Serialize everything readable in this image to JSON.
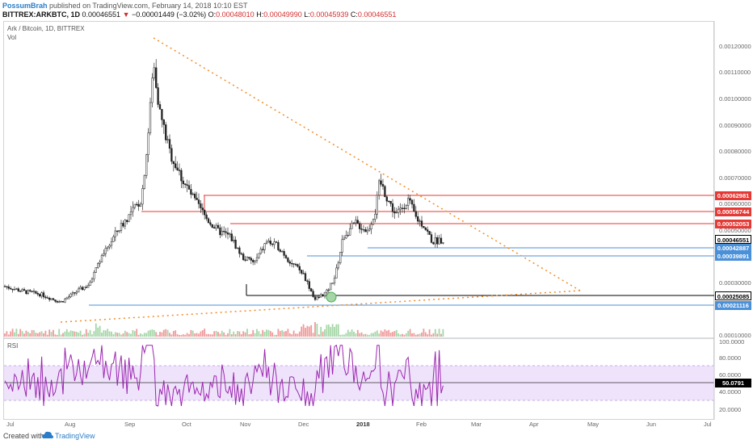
{
  "header": {
    "author": "PossumBrah",
    "published_text": " published on TradingView.com, February 14, 2018 10:10 EST",
    "symbol": "BITTREX:ARKBTC, 1D",
    "last": "0.00046551",
    "change_arrow": "▼",
    "change": "−0.00001449 (−3.02%)",
    "open_label": "O:",
    "open": "0.00048010",
    "high_label": "H:",
    "high": "0.00049990",
    "low_label": "L:",
    "low": "0.00045939",
    "close_label": "C:",
    "close": "0.00046551"
  },
  "chart": {
    "title": "Ark / Bitcoin, 1D, BITTREX",
    "volume_label": "Vol",
    "rsi_label": "RSI"
  },
  "price_axis": {
    "ticks": [
      "0.00120000",
      "0.00110000",
      "0.00100000",
      "0.00090000",
      "0.00080000",
      "0.00070000",
      "0.00060000",
      "0.00050000",
      "0.00030000",
      "0.00010000"
    ],
    "tags": [
      {
        "label": "0.00062981",
        "color": "#e53935"
      },
      {
        "label": "0.00056744",
        "color": "#e53935"
      },
      {
        "label": "0.00052053",
        "color": "#e53935"
      },
      {
        "label": "0.00046551",
        "color": "#000000"
      },
      {
        "label": "0.00042887",
        "color": "#4a90d9"
      },
      {
        "label": "0.00039891",
        "color": "#4a90d9"
      },
      {
        "label": "0.00025085",
        "color": "#000000"
      },
      {
        "label": "0.00021116",
        "color": "#4a90d9"
      }
    ]
  },
  "rsi_axis": {
    "ticks": [
      "100.0000",
      "80.0000",
      "60.0000",
      "40.0000",
      "20.0000"
    ],
    "value_tag": "50.0791"
  },
  "time_axis": [
    "Jul",
    "Aug",
    "Sep",
    "Oct",
    "Nov",
    "Dec",
    "2018",
    "Feb",
    "Mar",
    "Apr",
    "May",
    "Jun",
    "Jul"
  ],
  "chart_data": {
    "type": "candlestick",
    "title": "Ark / Bitcoin, 1D, BITTREX",
    "y_range": [
      0.0001,
      0.00123
    ],
    "horizontal_levels": {
      "resistance": [
        0.00062981,
        0.00056744,
        0.00052053
      ],
      "support": [
        0.00042887,
        0.00039891,
        0.00021116
      ],
      "black": [
        0.00025085
      ]
    },
    "last_price": 0.00046551,
    "rsi_last": 50.0791,
    "rsi_range": [
      0,
      100
    ]
  },
  "footer": {
    "created_with": "Created with",
    "brand": "TradingView"
  }
}
